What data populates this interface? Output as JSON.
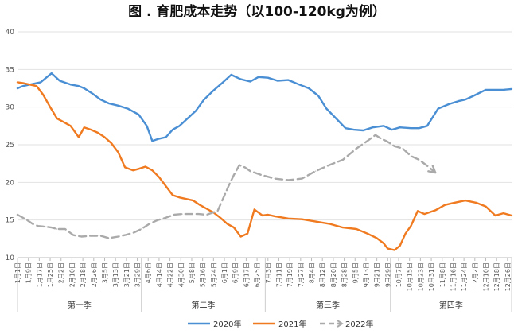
{
  "chart_data": {
    "type": "line",
    "title": "图   . 育肥成本走势（以100-120kg为例）",
    "ylim": [
      10,
      40
    ],
    "yticks": [
      "10",
      "15",
      "20",
      "25",
      "30",
      "35",
      "40"
    ],
    "grid": true,
    "legend_position": "bottom",
    "x_tick_labels": [
      "1月1日",
      "1月9日",
      "1月17日",
      "1月25日",
      "2月2日",
      "2月10日",
      "2月18日",
      "2月26日",
      "3月5日",
      "3月13日",
      "3月21日",
      "3月29日",
      "4月6日",
      "4月14日",
      "4月22日",
      "4月30日",
      "5月8日",
      "5月16日",
      "5月24日",
      "6月1日",
      "6月9日",
      "6月17日",
      "6月25日",
      "7月3日",
      "7月11日",
      "7月19日",
      "7月27日",
      "8月4日",
      "8月12日",
      "8月20日",
      "8月28日",
      "9月5日",
      "9月13日",
      "9月21日",
      "9月29日",
      "10月7日",
      "10月15日",
      "10月23日",
      "10月31日",
      "11月8日",
      "11月16日",
      "11月24日",
      "12月2日",
      "12月10日",
      "12月18日",
      "12月26日"
    ],
    "quarters": [
      "第一季",
      "第二季",
      "第三季",
      "第四季"
    ],
    "series": [
      {
        "name": "2020年",
        "color": "#4a8fd4",
        "style": "solid",
        "x": [
          1,
          5,
          10,
          18,
          26,
          32,
          40,
          46,
          50,
          56,
          62,
          68,
          75,
          82,
          90,
          96,
          100,
          105,
          110,
          115,
          120,
          126,
          132,
          138,
          145,
          152,
          158,
          165,
          172,
          178,
          185,
          192,
          200,
          208,
          215,
          222,
          228,
          235,
          242,
          248,
          255,
          262,
          270,
          276,
          282,
          290,
          296,
          302,
          310,
          318,
          325,
          330,
          336,
          345,
          352,
          358,
          364
        ],
        "values": [
          32.5,
          32.8,
          33.0,
          33.3,
          34.5,
          33.5,
          33.0,
          32.8,
          32.5,
          31.8,
          31.0,
          30.5,
          30.2,
          29.8,
          29.0,
          27.5,
          25.5,
          25.8,
          26.0,
          27.0,
          27.5,
          28.5,
          29.5,
          31.0,
          32.2,
          33.3,
          34.3,
          33.7,
          33.4,
          34.0,
          33.9,
          33.5,
          33.6,
          33.0,
          32.5,
          31.5,
          29.8,
          28.5,
          27.2,
          27.0,
          26.9,
          27.3,
          27.5,
          27.0,
          27.3,
          27.2,
          27.2,
          27.5,
          29.8,
          30.4,
          30.8,
          31.0,
          31.5,
          32.3,
          32.3,
          32.3,
          32.4
        ]
      },
      {
        "name": "2021年",
        "color": "#f07a20",
        "style": "solid",
        "x": [
          1,
          5,
          10,
          15,
          20,
          25,
          30,
          35,
          40,
          46,
          50,
          55,
          60,
          65,
          70,
          75,
          80,
          86,
          90,
          95,
          100,
          105,
          110,
          115,
          120,
          125,
          130,
          135,
          140,
          145,
          150,
          155,
          160,
          165,
          170,
          175,
          178,
          181,
          185,
          190,
          200,
          210,
          220,
          230,
          240,
          250,
          258,
          265,
          270,
          273,
          278,
          282,
          286,
          290,
          295,
          300,
          308,
          315,
          322,
          330,
          338,
          345,
          352,
          358,
          364
        ],
        "values": [
          33.3,
          33.2,
          33.0,
          32.8,
          31.6,
          30.0,
          28.5,
          28.0,
          27.5,
          26.0,
          27.3,
          27.0,
          26.6,
          26.0,
          25.2,
          24.0,
          22.0,
          21.6,
          21.8,
          22.1,
          21.6,
          20.7,
          19.5,
          18.3,
          18.0,
          17.8,
          17.6,
          17.0,
          16.5,
          16.0,
          15.3,
          14.5,
          14.0,
          12.8,
          13.2,
          16.4,
          16.0,
          15.6,
          15.7,
          15.5,
          15.2,
          15.1,
          14.8,
          14.5,
          14.0,
          13.8,
          13.2,
          12.6,
          11.9,
          11.2,
          11.0,
          11.6,
          13.2,
          14.2,
          16.2,
          15.8,
          16.3,
          17.0,
          17.3,
          17.6,
          17.3,
          16.8,
          15.6,
          15.9,
          15.6
        ]
      },
      {
        "name": "2022年",
        "color": "#aaaaaa",
        "style": "dashed-arrow",
        "x": [
          1,
          8,
          12,
          16,
          22,
          26,
          30,
          36,
          42,
          48,
          55,
          62,
          68,
          75,
          80,
          86,
          92,
          98,
          104,
          110,
          116,
          122,
          128,
          134,
          140,
          148,
          156,
          160,
          164,
          168,
          172,
          180,
          190,
          200,
          210,
          220,
          230,
          240,
          250,
          258,
          264,
          268,
          272,
          278,
          284,
          290,
          296,
          302,
          308
        ],
        "values": [
          15.7,
          15.0,
          14.5,
          14.2,
          14.1,
          14.0,
          13.8,
          13.8,
          13.0,
          12.8,
          12.9,
          12.9,
          12.6,
          12.8,
          13.0,
          13.3,
          13.8,
          14.5,
          15.0,
          15.3,
          15.7,
          15.8,
          15.8,
          15.8,
          15.7,
          16.2,
          19.5,
          21.0,
          22.3,
          22.0,
          21.5,
          21.0,
          20.5,
          20.3,
          20.5,
          21.5,
          22.3,
          23.0,
          24.5,
          25.5,
          26.3,
          25.8,
          25.5,
          24.8,
          24.5,
          23.5,
          23.0,
          22.2,
          21.3
        ]
      }
    ]
  }
}
